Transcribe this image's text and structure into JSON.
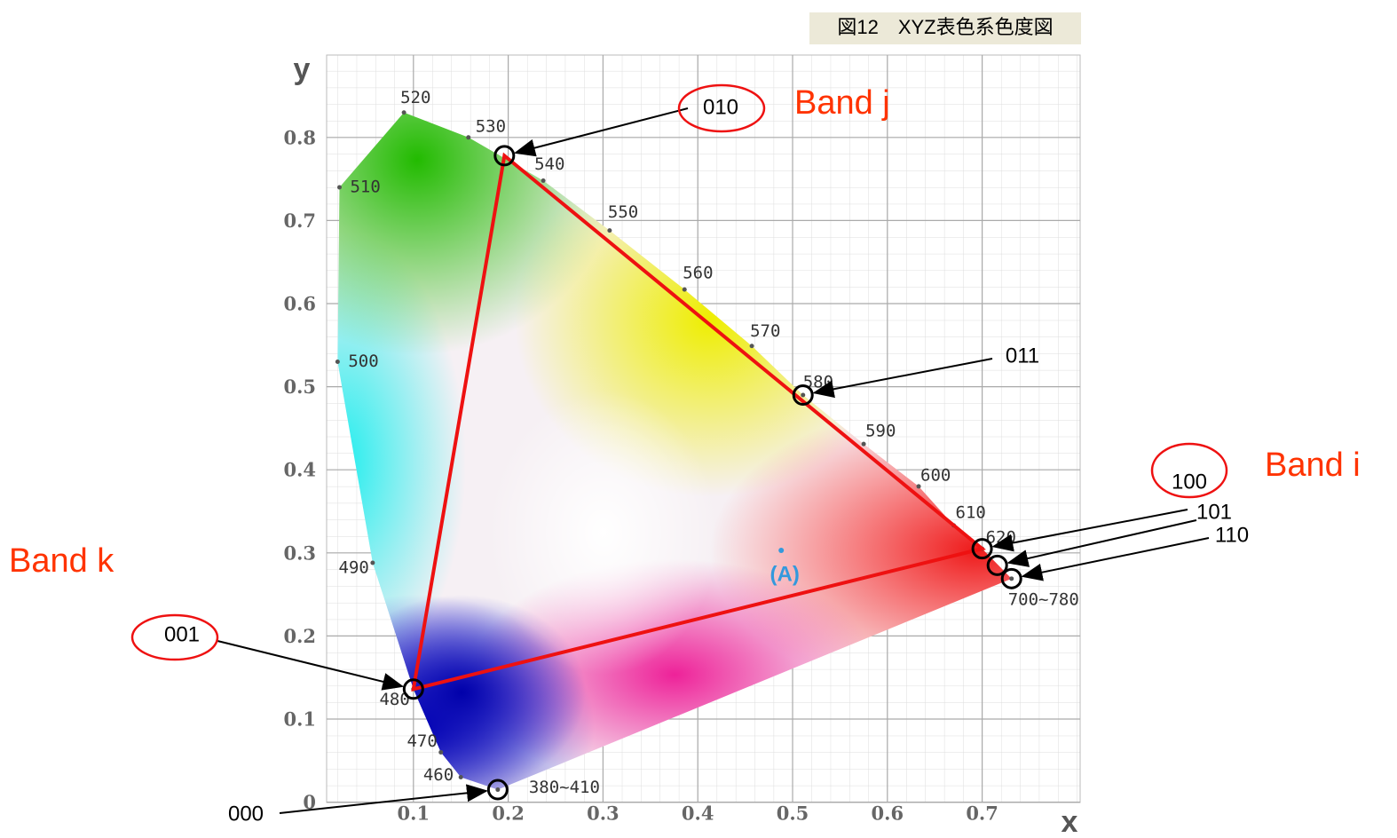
{
  "chart_data": {
    "type": "chromaticity",
    "title": "図12　XYZ表色系色度図",
    "xlabel": "x",
    "ylabel": "y",
    "xlim": [
      0,
      0.8
    ],
    "ylim": [
      0,
      0.9
    ],
    "xticks": [
      0.1,
      0.2,
      0.3,
      0.4,
      0.5,
      0.6,
      0.7
    ],
    "yticks": [
      0,
      0.1,
      0.2,
      0.3,
      0.4,
      0.5,
      0.6,
      0.7,
      0.8
    ],
    "grid": true,
    "locus": {
      "labels": [
        "380~410",
        "460",
        "470",
        "480",
        "490",
        "500",
        "510",
        "520",
        "530",
        "540",
        "550",
        "560",
        "570",
        "580",
        "590",
        "600",
        "610",
        "620",
        "700~780"
      ],
      "x": [
        0.189,
        0.15,
        0.129,
        0.1,
        0.057,
        0.02,
        0.022,
        0.09,
        0.158,
        0.237,
        0.307,
        0.386,
        0.457,
        0.511,
        0.575,
        0.633,
        0.67,
        0.7,
        0.731
      ],
      "y": [
        0.015,
        0.03,
        0.06,
        0.136,
        0.288,
        0.53,
        0.74,
        0.83,
        0.8,
        0.748,
        0.688,
        0.617,
        0.549,
        0.49,
        0.431,
        0.38,
        0.333,
        0.305,
        0.269
      ]
    },
    "codes": {
      "labels": [
        "000",
        "001",
        "010",
        "011",
        "100",
        "101",
        "110"
      ],
      "x": [
        0.189,
        0.1,
        0.196,
        0.511,
        0.7,
        0.716,
        0.731
      ],
      "y": [
        0.015,
        0.136,
        0.778,
        0.49,
        0.305,
        0.285,
        0.269
      ]
    },
    "triangle": {
      "x": [
        0.196,
        0.7,
        0.1
      ],
      "y": [
        0.778,
        0.305,
        0.136
      ],
      "color": "#ee1111"
    },
    "illuminant": {
      "label": "(A)",
      "x": 0.488,
      "y": 0.303
    },
    "bands": [
      "Band i",
      "Band j",
      "Band k"
    ]
  }
}
